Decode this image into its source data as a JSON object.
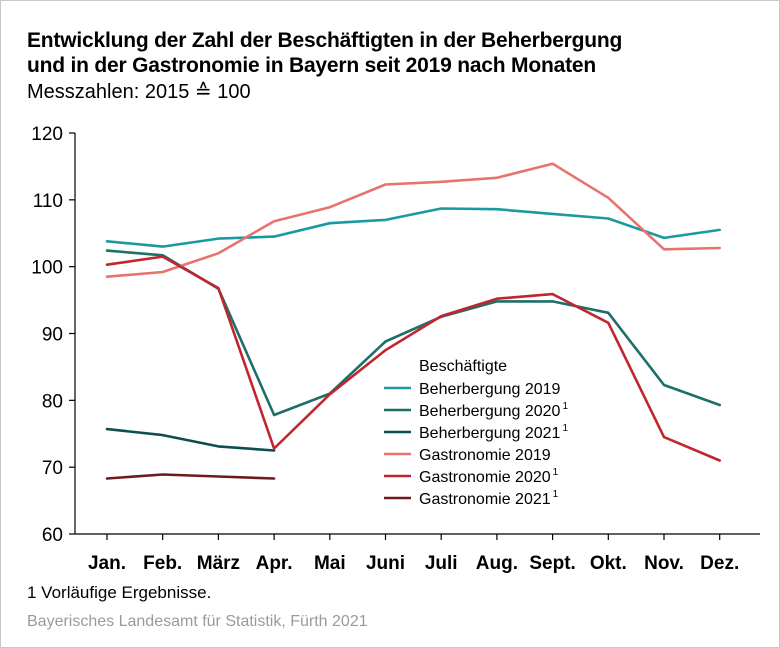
{
  "header": {
    "title_line1": "Entwicklung der Zahl der Beschäftigten in der Beherbergung",
    "title_line2": "und in der Gastronomie in Bayern seit 2019 nach Monaten",
    "subtitle": "Messzahlen: 2015 ≙ 100"
  },
  "footer": {
    "footnote": "1  Vorläufige Ergebnisse.",
    "source": "Bayerisches Landesamt für Statistik, Fürth 2021"
  },
  "chart_data": {
    "type": "line",
    "categories": [
      "Jan.",
      "Feb.",
      "März",
      "Apr.",
      "Mai",
      "Juni",
      "Juli",
      "Aug.",
      "Sept.",
      "Okt.",
      "Nov.",
      "Dez."
    ],
    "ylim": [
      60,
      120
    ],
    "yticks": [
      60,
      70,
      80,
      90,
      100,
      110,
      120
    ],
    "grid": false,
    "legend_title": "Beschäftigte",
    "legend_position": "center",
    "series": [
      {
        "name": "Beherbergung 2019",
        "sup": "",
        "color": "#1a9aa0",
        "values": [
          103.8,
          103.0,
          104.2,
          104.5,
          106.5,
          107.0,
          108.7,
          108.6,
          107.9,
          107.2,
          104.3,
          105.5
        ]
      },
      {
        "name": "Beherbergung 2020",
        "sup": "1",
        "color": "#1e6e6a",
        "values": [
          102.4,
          101.7,
          96.7,
          77.8,
          81.0,
          88.8,
          92.5,
          94.8,
          94.8,
          93.1,
          82.3,
          79.3
        ]
      },
      {
        "name": "Beherbergung 2021",
        "sup": "1",
        "color": "#0d4f4f",
        "values": [
          75.7,
          74.8,
          73.1,
          72.5,
          null,
          null,
          null,
          null,
          null,
          null,
          null,
          null
        ]
      },
      {
        "name": "Gastronomie 2019",
        "sup": "",
        "color": "#e8736c",
        "values": [
          98.5,
          99.2,
          102.0,
          106.8,
          108.9,
          112.3,
          112.7,
          113.3,
          115.4,
          110.3,
          102.6,
          102.8
        ]
      },
      {
        "name": "Gastronomie 2020",
        "sup": "1",
        "color": "#c0262d",
        "values": [
          100.3,
          101.5,
          96.8,
          72.8,
          80.9,
          87.5,
          92.6,
          95.2,
          95.9,
          91.6,
          74.5,
          71.0
        ]
      },
      {
        "name": "Gastronomie 2021",
        "sup": "1",
        "color": "#6e1a1a",
        "values": [
          68.3,
          68.9,
          68.6,
          68.3,
          null,
          null,
          null,
          null,
          null,
          null,
          null,
          null
        ]
      }
    ]
  }
}
